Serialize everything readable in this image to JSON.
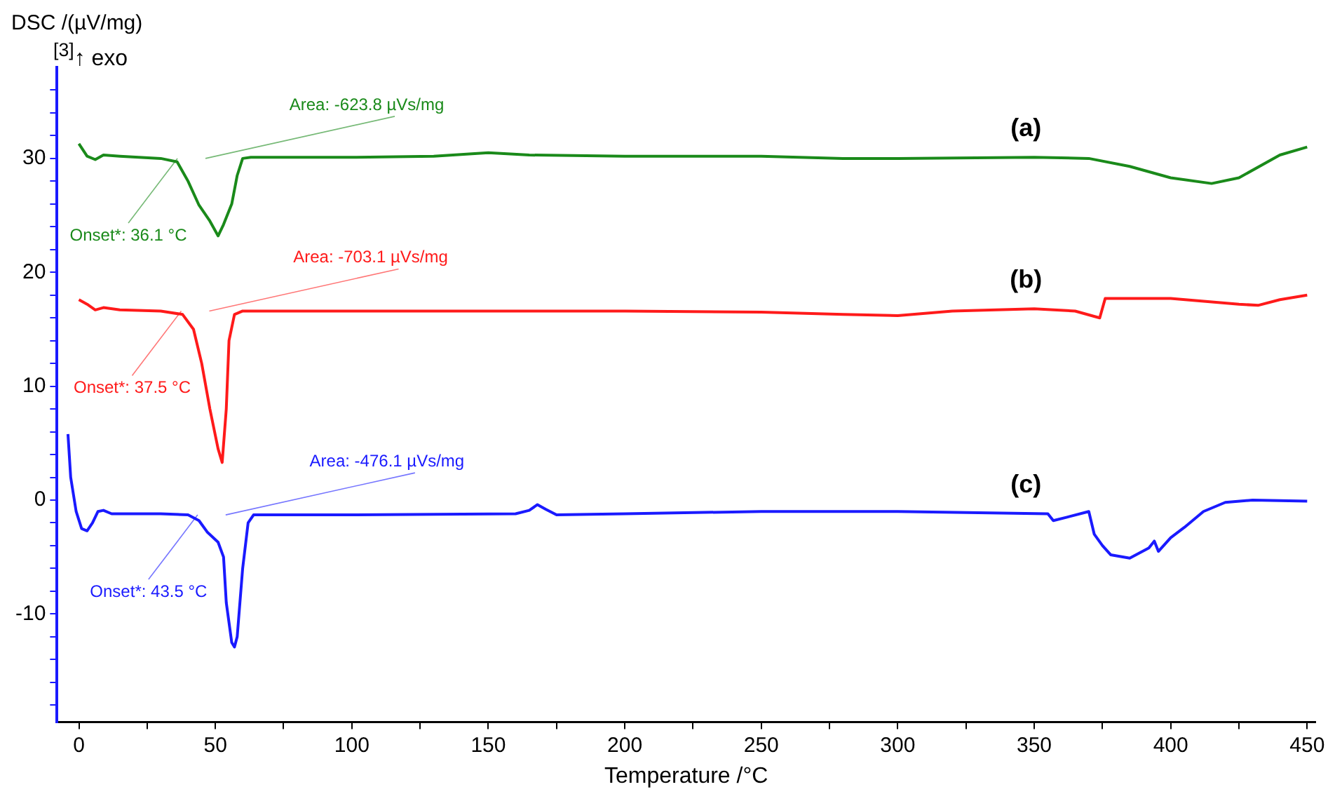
{
  "chart_data": {
    "type": "line",
    "ylabel": "DSC /(µV/mg)",
    "xlabel": "Temperature /°C",
    "xlim": [
      -8,
      453
    ],
    "ylim": [
      -19.5,
      38
    ],
    "xticks": [
      0,
      {
        "value": 25,
        "label": null
      },
      50,
      {
        "value": 75,
        "label": null
      },
      100,
      {
        "value": 125,
        "label": null
      },
      150,
      {
        "value": 175,
        "label": null
      },
      200,
      {
        "value": 225,
        "label": null
      },
      250,
      {
        "value": 275,
        "label": null
      },
      300,
      {
        "value": 325,
        "label": null
      },
      350,
      {
        "value": 375,
        "label": null
      },
      400,
      {
        "value": 425,
        "label": null
      },
      450
    ],
    "yticks": [
      {
        "value": -18,
        "label": null
      },
      {
        "value": -16,
        "label": null
      },
      {
        "value": -14,
        "label": null
      },
      {
        "value": -12,
        "label": null
      },
      -10,
      {
        "value": -8,
        "label": null
      },
      {
        "value": -6,
        "label": null
      },
      {
        "value": -4,
        "label": null
      },
      {
        "value": -2,
        "label": null
      },
      0,
      {
        "value": 2,
        "label": null
      },
      {
        "value": 4,
        "label": null
      },
      {
        "value": 6,
        "label": null
      },
      {
        "value": 8,
        "label": null
      },
      10,
      {
        "value": 12,
        "label": null
      },
      {
        "value": 14,
        "label": null
      },
      {
        "value": 16,
        "label": null
      },
      {
        "value": 18,
        "label": null
      },
      20,
      {
        "value": 22,
        "label": null
      },
      {
        "value": 24,
        "label": null
      },
      {
        "value": 26,
        "label": null
      },
      {
        "value": 28,
        "label": null
      },
      30,
      {
        "value": 32,
        "label": null
      },
      {
        "value": 34,
        "label": null
      },
      {
        "value": 36,
        "label": null
      }
    ],
    "grid": false,
    "legend": false,
    "marker": "none",
    "line_style": "solid",
    "series": [
      {
        "name": "(a)",
        "color": "#1a8a1a",
        "x": [
          0,
          3,
          6,
          9,
          15,
          30,
          36,
          40,
          44,
          48,
          51,
          53,
          56,
          58,
          60,
          63,
          100,
          130,
          150,
          165,
          200,
          250,
          280,
          300,
          350,
          370,
          385,
          400,
          415,
          425,
          440,
          450
        ],
        "values": [
          31.3,
          30.2,
          29.9,
          30.3,
          30.2,
          30.0,
          29.7,
          28,
          25.9,
          24.5,
          23.2,
          24.2,
          26,
          28.5,
          30,
          30.1,
          30.1,
          30.2,
          30.5,
          30.3,
          30.2,
          30.2,
          30.0,
          30.0,
          30.1,
          30.0,
          29.3,
          28.3,
          27.8,
          28.3,
          30.3,
          31
        ]
      },
      {
        "name": "(b)",
        "color": "#ff1a1a",
        "x": [
          0,
          3,
          6,
          9,
          15,
          30,
          38,
          42,
          45,
          48,
          51,
          52.5,
          54,
          55,
          57,
          60,
          100,
          200,
          250,
          280,
          300,
          320,
          350,
          365,
          374,
          376,
          400,
          425,
          432,
          440,
          450
        ],
        "values": [
          17.6,
          17.2,
          16.7,
          16.9,
          16.7,
          16.6,
          16.3,
          15,
          12,
          8,
          4.5,
          3.3,
          8,
          14,
          16.3,
          16.6,
          16.6,
          16.6,
          16.5,
          16.3,
          16.2,
          16.6,
          16.8,
          16.6,
          16,
          17.7,
          17.7,
          17.2,
          17.1,
          17.6,
          18
        ]
      },
      {
        "name": "(c)",
        "color": "#1a1aff",
        "x": [
          -4,
          -3,
          -1,
          1,
          3,
          5,
          7,
          9,
          12,
          30,
          40,
          44,
          47,
          51,
          53,
          54,
          56,
          57,
          58,
          60,
          62,
          64,
          100,
          160,
          165,
          168,
          171,
          175,
          200,
          250,
          300,
          355,
          357,
          362,
          370,
          372,
          375,
          378,
          385,
          392,
          394,
          395.5,
          400,
          405,
          412,
          420,
          430,
          450
        ],
        "values": [
          5.8,
          2,
          -1,
          -2.5,
          -2.7,
          -2,
          -1,
          -0.9,
          -1.2,
          -1.2,
          -1.3,
          -1.8,
          -2.8,
          -3.7,
          -5,
          -9,
          -12.5,
          -12.9,
          -12,
          -6,
          -2,
          -1.3,
          -1.3,
          -1.2,
          -0.9,
          -0.4,
          -0.8,
          -1.3,
          -1.2,
          -1.0,
          -1.0,
          -1.2,
          -1.8,
          -1.5,
          -1.0,
          -3,
          -4,
          -4.8,
          -5.1,
          -4.2,
          -3.6,
          -4.5,
          -3.3,
          -2.4,
          -1,
          -0.2,
          0,
          -0.1
        ]
      }
    ],
    "annotations": [
      "$^{[3]}$↑ exo",
      "Area: -623.8 µVs/mg",
      {
        "text": "Onset*: 36.1 °C",
        "x": 36.1,
        "y": 30
      },
      "Area: -703.1 µVs/mg",
      {
        "text": "Onset*: 37.5 °C",
        "x": 37.5,
        "y": 16.6
      },
      "Area: -476.1 µVs/mg",
      {
        "text": "Onset*: 43.5 °C",
        "x": 43.5,
        "y": -1.3
      }
    ]
  }
}
